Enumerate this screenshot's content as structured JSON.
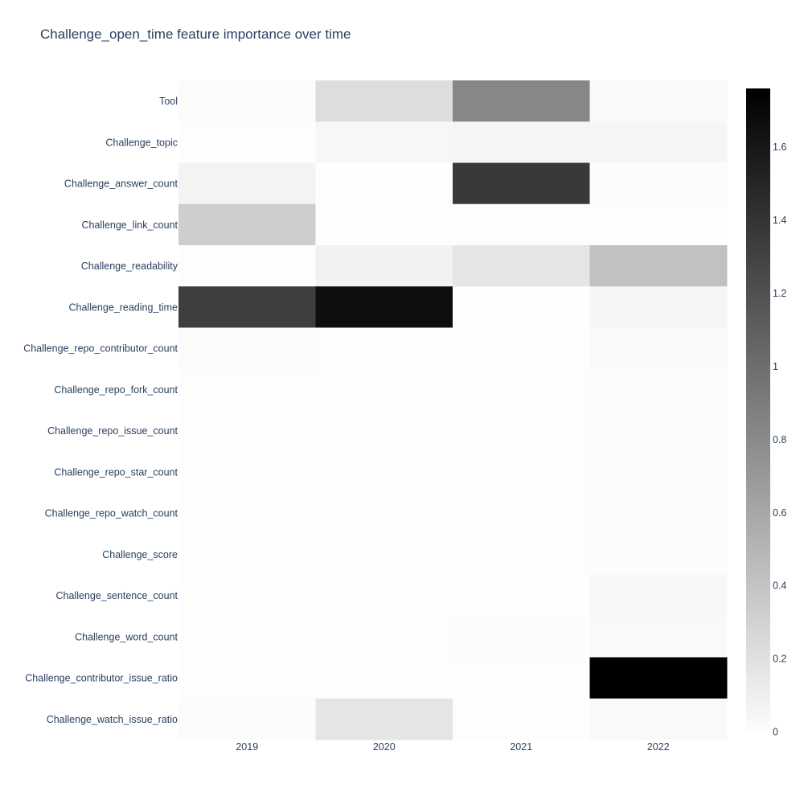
{
  "chart_data": {
    "type": "heatmap",
    "title": "Challenge_open_time feature importance over time",
    "x": [
      "2019",
      "2020",
      "2021",
      "2022"
    ],
    "y": [
      "Tool",
      "Challenge_topic",
      "Challenge_answer_count",
      "Challenge_link_count",
      "Challenge_readability",
      "Challenge_reading_time",
      "Challenge_repo_contributor_count",
      "Challenge_repo_fork_count",
      "Challenge_repo_issue_count",
      "Challenge_repo_star_count",
      "Challenge_repo_watch_count",
      "Challenge_score",
      "Challenge_sentence_count",
      "Challenge_word_count",
      "Challenge_contributor_issue_ratio",
      "Challenge_watch_issue_ratio"
    ],
    "z": [
      [
        0.01,
        0.22,
        0.82,
        0.02
      ],
      [
        0.0,
        0.04,
        0.05,
        0.05
      ],
      [
        0.07,
        0.0,
        1.36,
        0.01
      ],
      [
        0.33,
        0.0,
        0.0,
        0.0
      ],
      [
        0.0,
        0.08,
        0.17,
        0.42
      ],
      [
        1.33,
        1.66,
        0.0,
        0.05
      ],
      [
        0.01,
        0.0,
        0.0,
        0.02
      ],
      [
        0.0,
        0.0,
        0.0,
        0.01
      ],
      [
        0.0,
        0.0,
        0.0,
        0.01
      ],
      [
        0.0,
        0.0,
        0.0,
        0.01
      ],
      [
        0.0,
        0.0,
        0.0,
        0.01
      ],
      [
        0.0,
        0.0,
        0.0,
        0.01
      ],
      [
        0.0,
        0.0,
        0.0,
        0.04
      ],
      [
        0.0,
        0.0,
        0.01,
        0.03
      ],
      [
        0.0,
        0.0,
        0.0,
        1.76
      ],
      [
        0.01,
        0.17,
        0.0,
        0.03
      ]
    ],
    "zmin": 0,
    "zmax": 1.76,
    "colorscale": [
      "#fdfdfc",
      "#000000"
    ],
    "colorbar_ticks": [
      0,
      0.2,
      0.4,
      0.6,
      0.8,
      1,
      1.2,
      1.4,
      1.6
    ],
    "colorbar_tick_labels": [
      "0",
      "0.2",
      "0.4",
      "0.6",
      "0.8",
      "1",
      "1.2",
      "1.4",
      "1.6"
    ],
    "xlabel": "",
    "ylabel": "",
    "grid": false,
    "colorbar_placement": "right"
  }
}
